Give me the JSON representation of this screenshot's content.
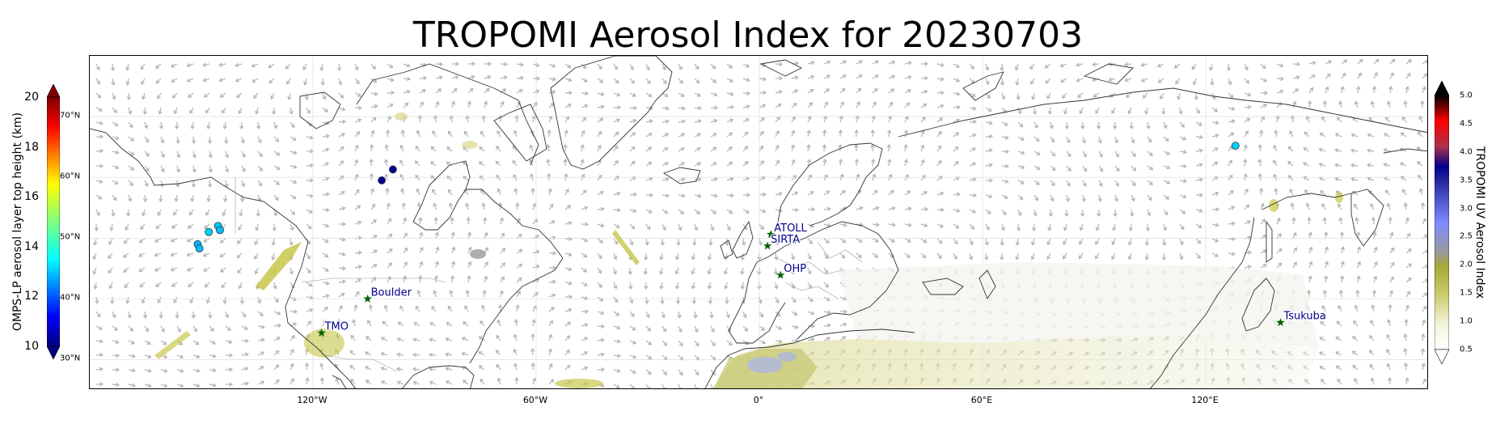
{
  "title": "TROPOMI Aerosol Index for 20230703",
  "map": {
    "x_ticks": [
      {
        "lon": -120,
        "label": "120°W"
      },
      {
        "lon": -60,
        "label": "60°W"
      },
      {
        "lon": 0,
        "label": "0°"
      },
      {
        "lon": 60,
        "label": "60°E"
      },
      {
        "lon": 120,
        "label": "120°E"
      }
    ],
    "lat_labels": [
      {
        "lat": 70,
        "label": "70°N"
      },
      {
        "lat": 60,
        "label": "60°N"
      },
      {
        "lat": 50,
        "label": "50°N"
      },
      {
        "lat": 40,
        "label": "40°N"
      },
      {
        "lat": 30,
        "label": "30°N"
      }
    ],
    "lon_range": [
      -180,
      180
    ],
    "lat_range": [
      25,
      80
    ],
    "sites": [
      {
        "name": "ATOLL",
        "lon": 3.1,
        "lat": 50.6
      },
      {
        "name": "SIRTA",
        "lon": 2.2,
        "lat": 48.7
      },
      {
        "name": "OHP",
        "lon": 5.7,
        "lat": 43.9
      },
      {
        "name": "Boulder",
        "lon": -105.3,
        "lat": 40.0
      },
      {
        "name": "TMO",
        "lon": -117.7,
        "lat": 34.4
      },
      {
        "name": "Tsukuba",
        "lon": 140.1,
        "lat": 36.1
      }
    ],
    "omps_points": [
      {
        "lon": -151.0,
        "lat": 49.0,
        "height_km": 13.0
      },
      {
        "lon": -150.5,
        "lat": 48.3,
        "height_km": 13.1
      },
      {
        "lon": -148.0,
        "lat": 51.0,
        "height_km": 13.3
      },
      {
        "lon": -145.5,
        "lat": 52.0,
        "height_km": 13.2
      },
      {
        "lon": -145.0,
        "lat": 51.3,
        "height_km": 13.1
      },
      {
        "lon": -101.5,
        "lat": 59.5,
        "height_km": 10.2
      },
      {
        "lon": -98.5,
        "lat": 61.3,
        "height_km": 10.1
      },
      {
        "lon": 128.0,
        "lat": 65.2,
        "height_km": 13.3
      }
    ]
  },
  "colorbar_left": {
    "label": "OMPS-LP aerosol layer top height (km)",
    "ticks": [
      "10",
      "12",
      "14",
      "16",
      "18",
      "20"
    ],
    "range": [
      10,
      20
    ]
  },
  "colorbar_right": {
    "label": "TROPOMI UV Aerosol Index",
    "ticks": [
      "0.5",
      "1.0",
      "1.5",
      "2.0",
      "2.5",
      "3.0",
      "3.5",
      "4.0",
      "4.5",
      "5.0"
    ],
    "range": [
      0.5,
      5.0
    ]
  },
  "colors": {
    "site_marker": "#006400",
    "site_label": "#00008b",
    "coast": "#333333",
    "wind_arrow": "#b4b4b4"
  }
}
